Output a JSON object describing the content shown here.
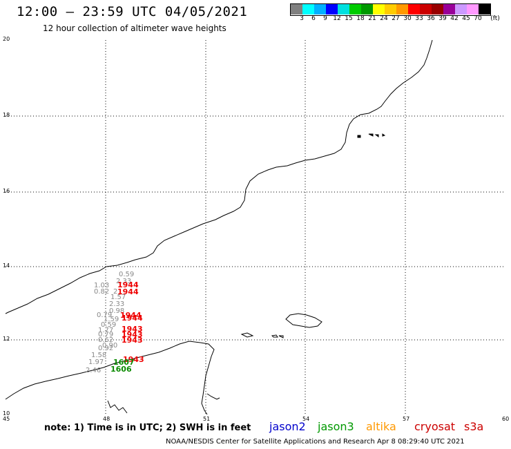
{
  "header": {
    "title": "12:00 – 23:59 UTC 04/05/2021",
    "subtitle": "12 hour collection of altimeter wave heights"
  },
  "legend": {
    "colors": [
      "#808080",
      "#00ffff",
      "#00b0ff",
      "#0000ff",
      "#00e0e0",
      "#00cc00",
      "#009900",
      "#ffff00",
      "#ffcc00",
      "#ff9900",
      "#ff0000",
      "#cc0000",
      "#990000",
      "#990099",
      "#cc99ff",
      "#ff99ff",
      "#000000"
    ],
    "labels": [
      "3",
      "6",
      "9",
      "12",
      "15",
      "18",
      "21",
      "24",
      "27",
      "30",
      "33",
      "36",
      "39",
      "42",
      "45",
      "70",
      "(ft)"
    ]
  },
  "map": {
    "lat_labels": [
      "20",
      "18",
      "16",
      "14",
      "12",
      "10"
    ],
    "lon_labels": [
      "45",
      "48",
      "51",
      "54",
      "57",
      "60"
    ]
  },
  "wave_labels": [
    {
      "text": "0.59",
      "cls": "gray"
    },
    {
      "text": "2.33",
      "cls": "gray"
    },
    {
      "text": "1.03",
      "cls": "gray"
    },
    {
      "text": "1944",
      "cls": "red"
    },
    {
      "text": "0.82",
      "cls": "gray"
    },
    {
      "text": "2",
      "cls": "gray"
    },
    {
      "text": "1944",
      "cls": "red"
    },
    {
      "text": "1.57",
      "cls": "gray"
    },
    {
      "text": "2.33",
      "cls": "gray"
    },
    {
      "text": "0.98",
      "cls": "gray"
    },
    {
      "text": "0.79",
      "cls": "gray"
    },
    {
      "text": "1944",
      "cls": "red"
    },
    {
      "text": "1.59",
      "cls": "gray"
    },
    {
      "text": "1944",
      "cls": "red"
    },
    {
      "text": "0.59",
      "cls": "gray"
    },
    {
      "text": "1.77",
      "cls": "gray"
    },
    {
      "text": "1943",
      "cls": "red"
    },
    {
      "text": "0.79",
      "cls": "gray"
    },
    {
      "text": "1943",
      "cls": "red"
    },
    {
      "text": "0.62",
      "cls": "gray"
    },
    {
      "text": "1943",
      "cls": "red"
    },
    {
      "text": "0.90",
      "cls": "gray"
    },
    {
      "text": "0.92",
      "cls": "gray"
    },
    {
      "text": "1.58",
      "cls": "gray"
    },
    {
      "text": "1943",
      "cls": "red"
    },
    {
      "text": "1.97",
      "cls": "gray"
    },
    {
      "text": "1607",
      "cls": "green"
    },
    {
      "text": "2.46",
      "cls": "gray"
    },
    {
      "text": "1606",
      "cls": "green"
    }
  ],
  "footer": {
    "note": "note: 1) Time is in UTC; 2) SWH is in feet",
    "missions": [
      {
        "name": "jason2",
        "color": "#0000cc"
      },
      {
        "name": "jason3",
        "color": "#009900"
      },
      {
        "name": "altika",
        "color": "#ff9900"
      },
      {
        "name": "cryosat",
        "color": "#cc0000"
      },
      {
        "name": "s3a",
        "color": "#cc0000"
      }
    ],
    "credit": "NOAA/NESDIS Center for Satellite Applications and Research    Apr  8 08:29:40 UTC 2021"
  }
}
